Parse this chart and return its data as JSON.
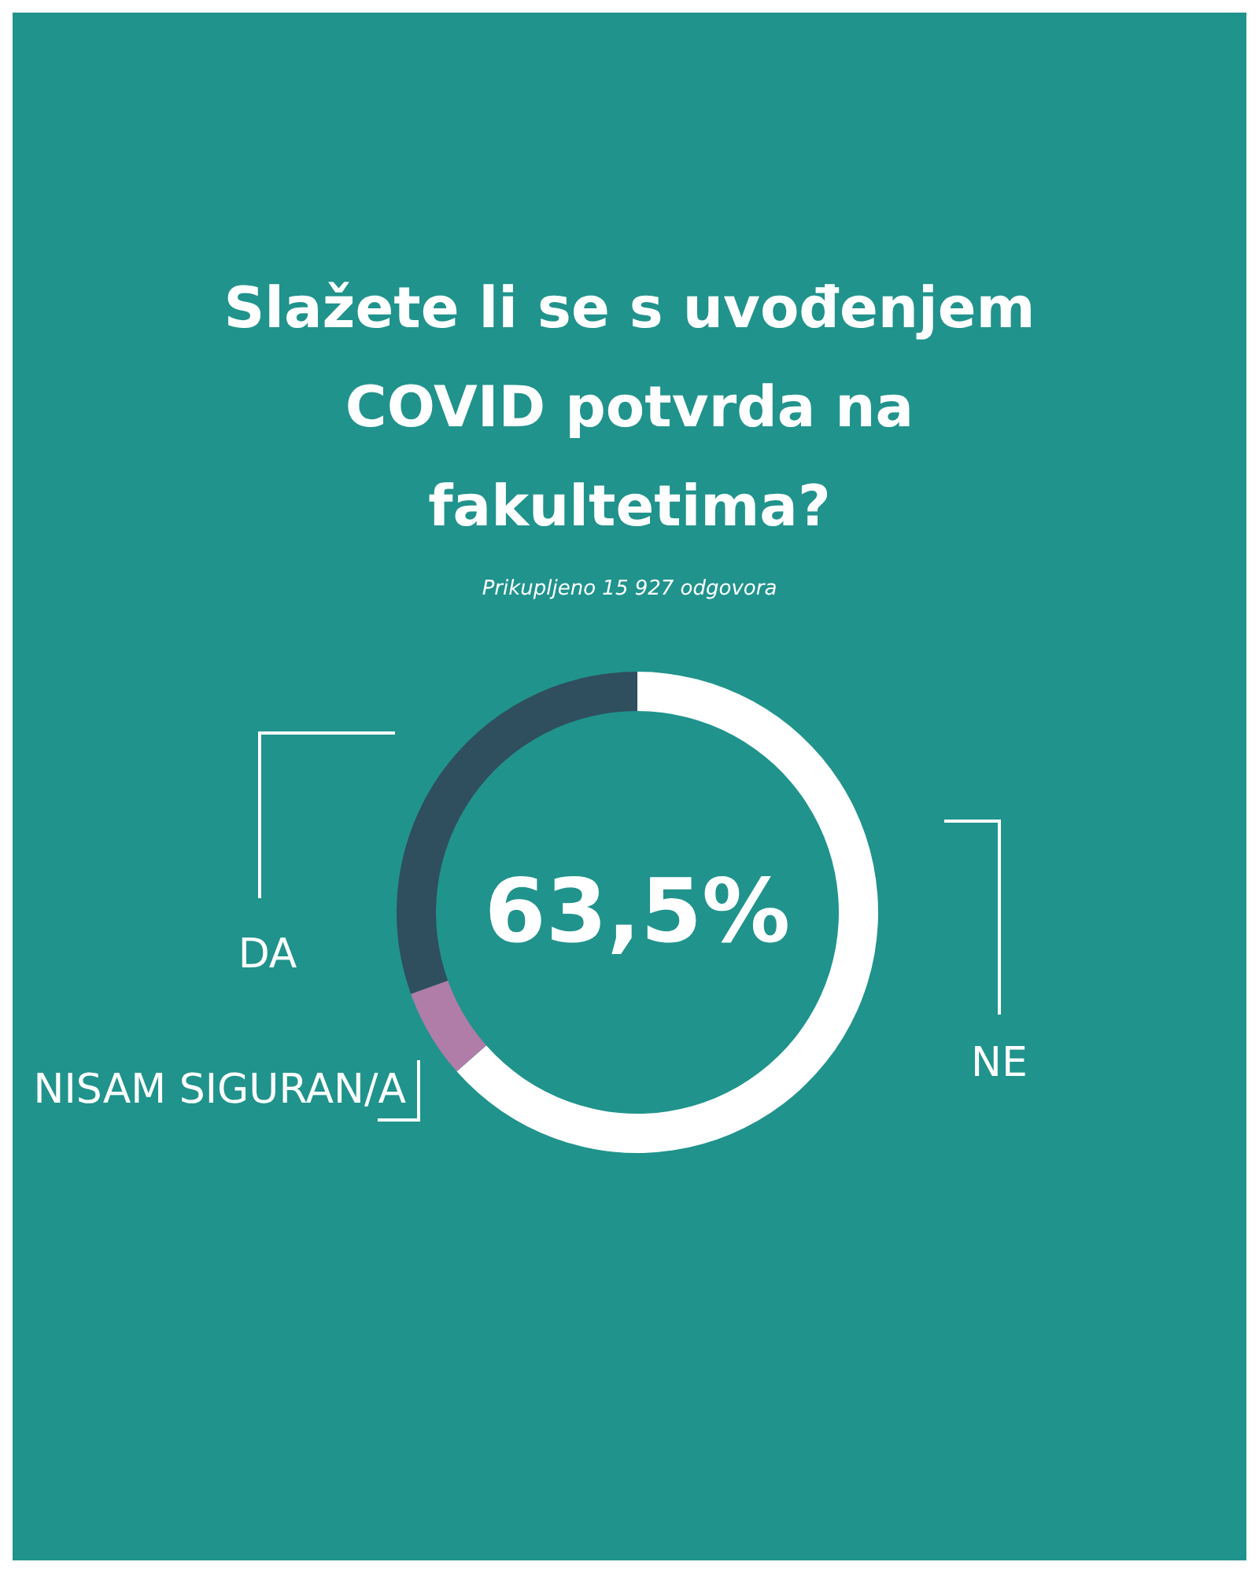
{
  "chart_data": {
    "type": "donut",
    "title": "Slažete li se s uvođenjem COVID potvrda na fakultetima?",
    "subtitle": "Prikupljeno 15 927 odgovora",
    "categories": [
      "NE",
      "NISAM SIGURAN/A",
      "DA"
    ],
    "values": [
      63.5,
      6,
      30.5
    ],
    "colors": [
      "#ffffff",
      "#b07ca8",
      "#2f4e5e"
    ],
    "annotations": [
      "63,5%"
    ]
  }
}
